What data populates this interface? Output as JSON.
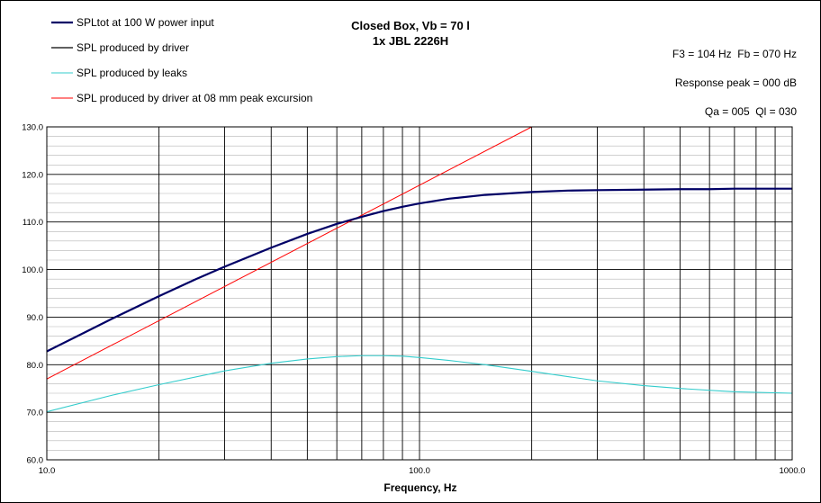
{
  "chart_data": {
    "type": "line",
    "title": "Closed Box, Vb = 70 l",
    "subtitle": "1x JBL 2226H",
    "xlabel": "Frequency, Hz",
    "ylabel": "",
    "x_scale": "log",
    "xlim": [
      10,
      1000
    ],
    "ylim": [
      60,
      130
    ],
    "x_ticks": [
      "10.0",
      "100.0",
      "1000.0"
    ],
    "y_ticks": [
      "60.0",
      "70.0",
      "80.0",
      "90.0",
      "100.0",
      "110.0",
      "120.0",
      "130.0"
    ],
    "grid": true,
    "info_lines": [
      "F3 = 104 Hz  Fb = 070 Hz",
      "Response peak = 000 dB",
      "Qa = 005  Ql = 030"
    ],
    "series": [
      {
        "name": "SPLtot at 100 W power input",
        "color": "#000066",
        "x": [
          10,
          12,
          15,
          20,
          25,
          30,
          40,
          50,
          60,
          70,
          80,
          90,
          100,
          120,
          150,
          200,
          250,
          300,
          400,
          500,
          600,
          700,
          800,
          1000
        ],
        "y": [
          82.8,
          85.9,
          89.7,
          94.4,
          97.9,
          100.6,
          104.6,
          107.5,
          109.6,
          111.1,
          112.3,
          113.2,
          113.9,
          114.9,
          115.7,
          116.3,
          116.6,
          116.7,
          116.8,
          116.9,
          116.9,
          117.0,
          117.0,
          117.0
        ]
      },
      {
        "name": "SPL produced by driver",
        "color": "#000000",
        "x": [
          10,
          12,
          15,
          20,
          25,
          30,
          40,
          50,
          60,
          70,
          80,
          90,
          100,
          120,
          150,
          200,
          250,
          300,
          400,
          500,
          600,
          700,
          800,
          1000
        ],
        "y": [
          82.8,
          85.9,
          89.7,
          94.4,
          97.9,
          100.6,
          104.6,
          107.5,
          109.6,
          111.1,
          112.3,
          113.2,
          113.9,
          114.9,
          115.7,
          116.3,
          116.6,
          116.7,
          116.8,
          116.9,
          116.9,
          117.0,
          117.0,
          117.0
        ]
      },
      {
        "name": "SPL produced by leaks",
        "color": "#33cccc",
        "x": [
          10,
          15,
          20,
          30,
          40,
          50,
          60,
          70,
          80,
          90,
          100,
          120,
          150,
          200,
          300,
          400,
          500,
          700,
          1000
        ],
        "y": [
          70.1,
          73.6,
          75.8,
          78.7,
          80.3,
          81.2,
          81.7,
          81.9,
          81.9,
          81.8,
          81.5,
          80.9,
          80.0,
          78.6,
          76.6,
          75.6,
          75.0,
          74.3,
          74.0
        ]
      },
      {
        "name": "SPL produced by driver at 08 mm peak excursion",
        "color": "#ff0000",
        "x": [
          10,
          200
        ],
        "y": [
          77.0,
          130.0
        ]
      }
    ]
  }
}
